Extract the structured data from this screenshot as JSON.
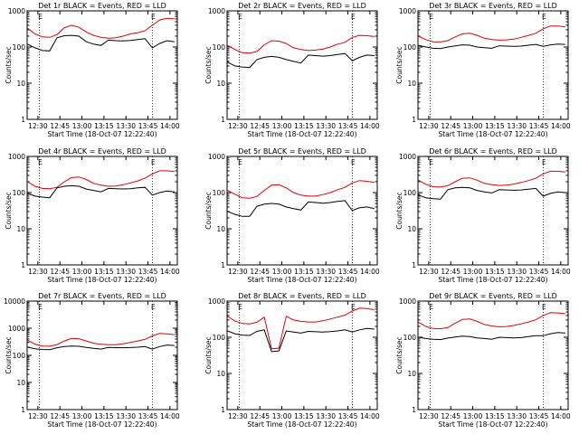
{
  "chart_data": {
    "type": "line",
    "y_scale": "log",
    "ylim": [
      1,
      1000
    ],
    "xlim": [
      "12:22:40",
      "14:05:00"
    ],
    "grid": false,
    "x_ticks": [
      "12:30",
      "12:45",
      "13:00",
      "13:15",
      "13:30",
      "13:45",
      "14:00"
    ],
    "y_ticks_default": [
      "1",
      "10",
      "100",
      "1000"
    ],
    "y_ticks_det7": [
      "1",
      "10",
      "100",
      "1000",
      "10000"
    ],
    "markers": [
      {
        "time": "12:31",
        "label": "E"
      },
      {
        "time": "13:48",
        "label": "E"
      }
    ],
    "xlabel": "Start Time (18-Oct-07 12:22:40)",
    "ylabel": "Counts/sec",
    "time_grid": [
      "12:23",
      "12:28",
      "12:33",
      "12:38",
      "12:43",
      "12:48",
      "12:53",
      "12:58",
      "13:03",
      "13:08",
      "13:13",
      "13:18",
      "13:23",
      "13:28",
      "13:33",
      "13:38",
      "13:43",
      "13:48",
      "13:53",
      "13:58",
      "14:03"
    ],
    "line_colors": {
      "events": "#000000",
      "lld": "#e00000"
    },
    "panels": [
      {
        "title": "Det 1r BLACK = Events, RED = LLD",
        "red": [
          330,
          230,
          190,
          185,
          220,
          340,
          400,
          350,
          260,
          210,
          185,
          175,
          180,
          200,
          230,
          250,
          280,
          400,
          560,
          620,
          600
        ],
        "black": [
          120,
          95,
          80,
          78,
          180,
          205,
          210,
          200,
          140,
          120,
          110,
          155,
          150,
          148,
          152,
          160,
          170,
          95,
          125,
          150,
          140
        ]
      },
      {
        "title": "Det 2r BLACK = Events, RED = LLD",
        "red": [
          110,
          85,
          70,
          68,
          75,
          115,
          150,
          145,
          125,
          95,
          85,
          80,
          82,
          88,
          100,
          120,
          135,
          185,
          210,
          205,
          195
        ],
        "black": [
          38,
          30,
          28,
          27,
          45,
          52,
          55,
          52,
          45,
          40,
          36,
          60,
          58,
          56,
          58,
          62,
          66,
          42,
          52,
          60,
          58
        ]
      },
      {
        "title": "Det 3r BLACK = Events, RED = LLD",
        "red": [
          200,
          160,
          140,
          138,
          150,
          190,
          230,
          240,
          210,
          175,
          160,
          155,
          158,
          165,
          185,
          210,
          240,
          320,
          380,
          380,
          360
        ],
        "black": [
          110,
          100,
          92,
          90,
          100,
          108,
          115,
          112,
          100,
          96,
          92,
          108,
          106,
          104,
          106,
          112,
          118,
          105,
          115,
          120,
          118
        ]
      },
      {
        "title": "Det 4r BLACK = Events, RED = LLD",
        "red": [
          200,
          150,
          130,
          128,
          140,
          200,
          260,
          270,
          230,
          180,
          160,
          150,
          152,
          165,
          185,
          210,
          250,
          330,
          400,
          400,
          380
        ],
        "black": [
          95,
          80,
          75,
          72,
          135,
          150,
          155,
          150,
          125,
          115,
          105,
          130,
          128,
          126,
          128,
          135,
          140,
          85,
          100,
          110,
          105
        ]
      },
      {
        "title": "Det 5r BLACK = Events, RED = LLD",
        "red": [
          115,
          90,
          72,
          70,
          78,
          115,
          160,
          165,
          135,
          100,
          85,
          80,
          80,
          88,
          100,
          120,
          140,
          185,
          215,
          205,
          190
        ],
        "black": [
          30,
          25,
          22,
          22,
          42,
          48,
          50,
          48,
          40,
          36,
          33,
          55,
          53,
          51,
          53,
          57,
          60,
          32,
          38,
          40,
          36
        ]
      },
      {
        "title": "Det 6r BLACK = Events, RED = LLD",
        "red": [
          220,
          170,
          145,
          142,
          155,
          200,
          250,
          255,
          220,
          180,
          165,
          158,
          160,
          172,
          190,
          215,
          250,
          330,
          390,
          390,
          370
        ],
        "black": [
          85,
          72,
          68,
          66,
          120,
          135,
          140,
          135,
          115,
          105,
          98,
          120,
          118,
          116,
          118,
          124,
          130,
          80,
          95,
          105,
          100
        ]
      },
      {
        "title": "Det 7r BLACK = Events, RED = LLD",
        "red": [
          360,
          260,
          220,
          215,
          250,
          340,
          420,
          410,
          340,
          280,
          255,
          245,
          245,
          265,
          300,
          340,
          390,
          520,
          640,
          620,
          580
        ],
        "black": [
          200,
          175,
          165,
          162,
          190,
          210,
          220,
          215,
          195,
          180,
          170,
          195,
          192,
          190,
          193,
          200,
          210,
          170,
          210,
          240,
          230
        ]
      },
      {
        "title": "Det 8r BLACK = Events, RED = LLD",
        "red": [
          380,
          280,
          240,
          235,
          260,
          360,
          48,
          50,
          380,
          300,
          275,
          265,
          265,
          285,
          320,
          360,
          410,
          530,
          640,
          620,
          580
        ],
        "black": [
          150,
          125,
          115,
          112,
          145,
          160,
          40,
          42,
          150,
          140,
          130,
          145,
          142,
          140,
          143,
          150,
          160,
          140,
          160,
          175,
          168
        ]
      },
      {
        "title": "Det 9r BLACK = Events, RED = LLD",
        "red": [
          260,
          200,
          175,
          172,
          185,
          245,
          310,
          320,
          275,
          225,
          205,
          195,
          198,
          212,
          235,
          265,
          305,
          400,
          480,
          470,
          450
        ],
        "black": [
          100,
          92,
          88,
          86,
          95,
          102,
          108,
          105,
          96,
          92,
          88,
          100,
          98,
          96,
          98,
          104,
          110,
          110,
          125,
          135,
          130
        ]
      }
    ]
  }
}
